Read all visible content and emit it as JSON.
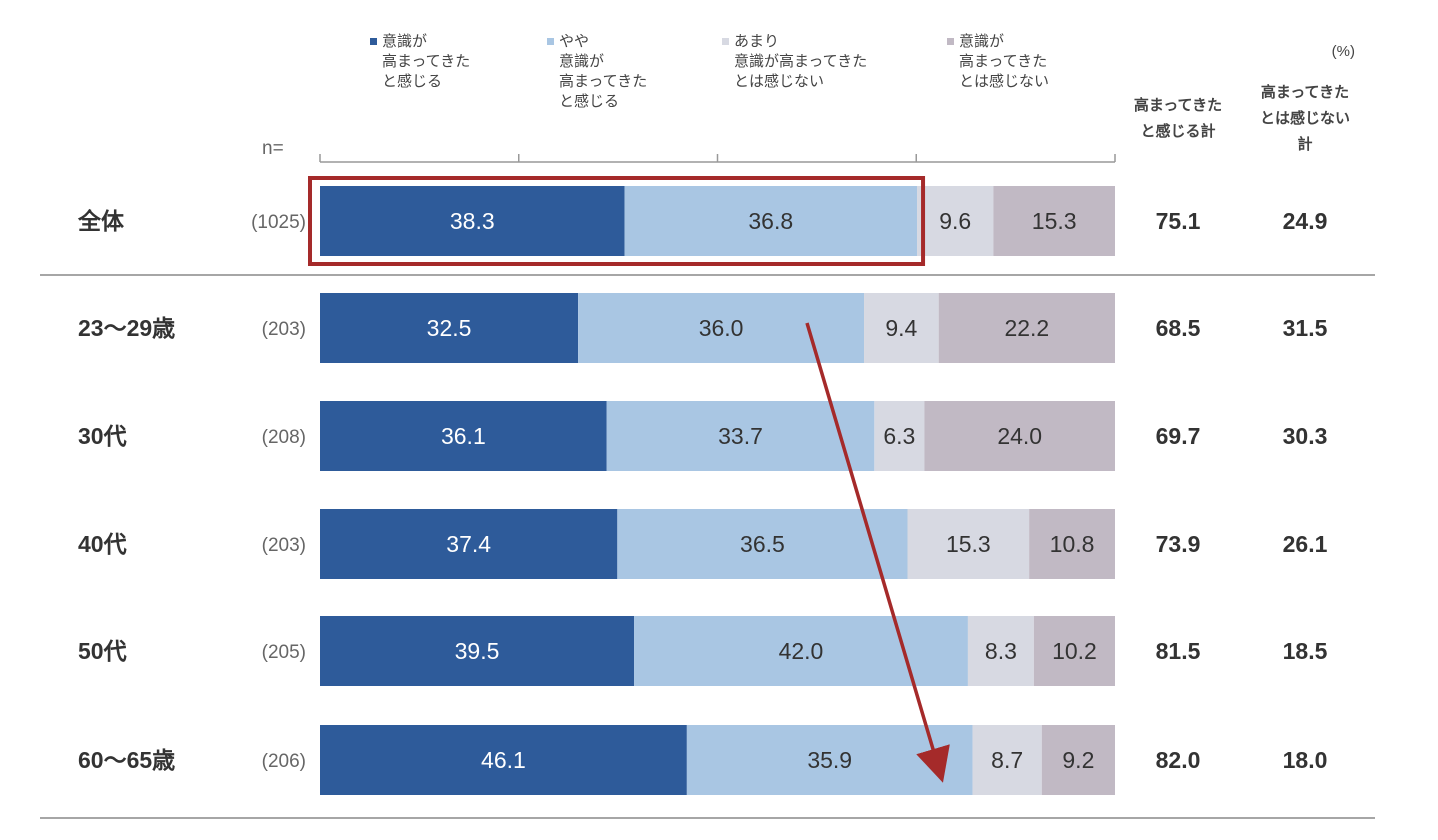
{
  "chart_data": {
    "type": "bar",
    "orientation": "horizontal",
    "stacked": true,
    "unit_label": "(%)",
    "n_prefix": "n=",
    "xlim": [
      0,
      100
    ],
    "categories": [
      "全体",
      "23〜29歳",
      "30代",
      "40代",
      "50代",
      "60〜65歳"
    ],
    "n_values": [
      "(1025)",
      "(203)",
      "(208)",
      "(203)",
      "(205)",
      "(206)"
    ],
    "series": [
      {
        "name_lines": [
          "意識が",
          "高まってきた",
          "と感じる"
        ],
        "color": "#2e5b9a",
        "label_color": "#ffffff",
        "values": [
          38.3,
          32.5,
          36.1,
          37.4,
          39.5,
          46.1
        ]
      },
      {
        "name_lines": [
          "やや",
          "意識が",
          "高まってきた",
          "と感じる"
        ],
        "color": "#a9c6e3",
        "label_color": "#333333",
        "values": [
          36.8,
          36.0,
          33.7,
          36.5,
          42.0,
          35.9
        ]
      },
      {
        "name_lines": [
          "あまり",
          "意識が高まってきた",
          "とは感じない"
        ],
        "color": "#d7d9e2",
        "label_color": "#333333",
        "values": [
          9.6,
          9.4,
          6.3,
          15.3,
          8.3,
          8.7
        ]
      },
      {
        "name_lines": [
          "意識が",
          "高まってきた",
          "とは感じない"
        ],
        "color": "#c1b9c4",
        "label_color": "#333333",
        "values": [
          15.3,
          22.2,
          24.0,
          10.8,
          10.2,
          9.2
        ]
      }
    ],
    "totals": [
      {
        "header_lines": [
          "高まってきた",
          "と感じる計"
        ],
        "values": [
          "75.1",
          "68.5",
          "69.7",
          "73.9",
          "81.5",
          "82.0"
        ]
      },
      {
        "header_lines": [
          "高まってきた",
          "とは感じない",
          "計"
        ],
        "values": [
          "24.9",
          "31.5",
          "30.3",
          "26.1",
          "18.5",
          "18.0"
        ]
      }
    ],
    "highlight": {
      "category": "全体",
      "series_count": 2,
      "color": "#a52a2a"
    },
    "trend_arrow": {
      "from_category": "23〜29歳",
      "to_category": "60〜65歳",
      "color": "#a52a2a"
    }
  }
}
